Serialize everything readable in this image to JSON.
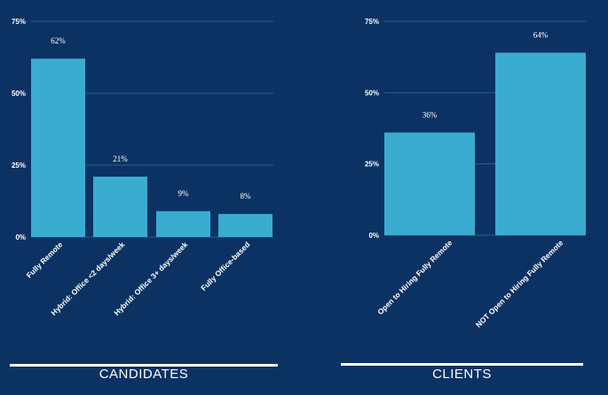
{
  "chart_data": [
    {
      "type": "bar",
      "title": "CANDIDATES",
      "categories": [
        "Fully Remote",
        "Hybrid: Office <2 days/week",
        "Hybrid: Office 3+ days/week",
        "Fully Office-based"
      ],
      "values": [
        62,
        21,
        9,
        8
      ],
      "value_labels": [
        "62%",
        "21%",
        "9%",
        "8%"
      ],
      "ylim": [
        0,
        75
      ],
      "yticks": [
        0,
        25,
        50,
        75
      ],
      "ytick_labels": [
        "0%",
        "25%",
        "50%",
        "75%"
      ],
      "bar_color": "#3aacd0",
      "grid": true
    },
    {
      "type": "bar",
      "title": "CLIENTS",
      "categories": [
        "Open to Hiring Fully Remote",
        "NOT Open to Hiring Fully Remote"
      ],
      "values": [
        36,
        64
      ],
      "value_labels": [
        "36%",
        "64%"
      ],
      "ylim": [
        0,
        75
      ],
      "yticks": [
        0,
        25,
        50,
        75
      ],
      "ytick_labels": [
        "0%",
        "25%",
        "50%",
        "75%"
      ],
      "bar_color": "#3aacd0",
      "grid": true
    }
  ],
  "colors": {
    "background": "#0b3263",
    "bar": "#3aacd0",
    "text": "#ffffff",
    "grid": "#2a5f93"
  }
}
